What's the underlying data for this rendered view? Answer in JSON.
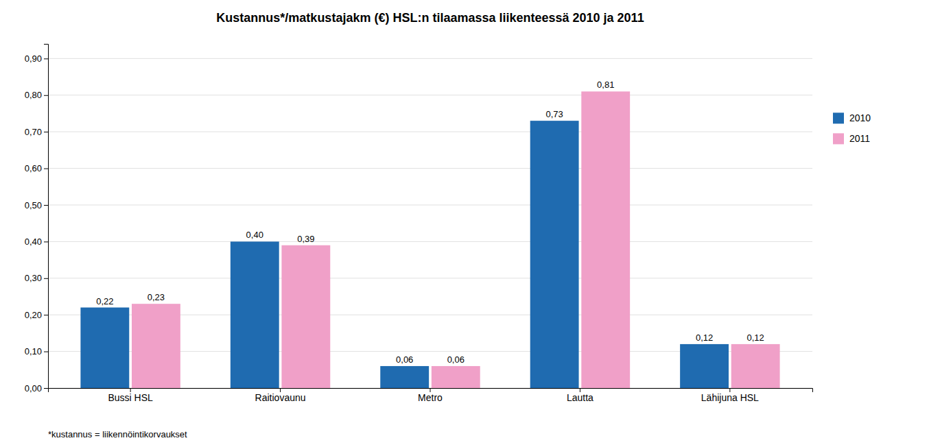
{
  "chart_data": {
    "type": "bar",
    "title": "Kustannus*/matkustajakm (€) HSL:n tilaamassa liikenteessä 2010 ja 2011",
    "categories": [
      "Bussi HSL",
      "Raitiovaunu",
      "Metro",
      "Lautta",
      "Lähijuna HSL"
    ],
    "series": [
      {
        "name": "2010",
        "color": "#1F6BB0",
        "values": [
          0.22,
          0.4,
          0.06,
          0.73,
          0.12
        ],
        "value_labels": [
          "0,22",
          "0,40",
          "0,06",
          "0,73",
          "0,12"
        ]
      },
      {
        "name": "2011",
        "color": "#F0A0C8",
        "values": [
          0.23,
          0.39,
          0.06,
          0.81,
          0.12
        ],
        "value_labels": [
          "0,23",
          "0,39",
          "0,06",
          "0,81",
          "0,12"
        ]
      }
    ],
    "ylim": [
      0,
      0.94
    ],
    "yticks": [
      {
        "value": 0.0,
        "label": "0,00"
      },
      {
        "value": 0.1,
        "label": "0,10"
      },
      {
        "value": 0.2,
        "label": "0,20"
      },
      {
        "value": 0.3,
        "label": "0,30"
      },
      {
        "value": 0.4,
        "label": "0,40"
      },
      {
        "value": 0.5,
        "label": "0,50"
      },
      {
        "value": 0.6,
        "label": "0,60"
      },
      {
        "value": 0.7,
        "label": "0,70"
      },
      {
        "value": 0.8,
        "label": "0,80"
      },
      {
        "value": 0.9,
        "label": "0,90"
      }
    ],
    "grid": true,
    "legend": "right",
    "data_labels": true,
    "footnote": "*kustannus = liikennöintikorvaukset"
  }
}
